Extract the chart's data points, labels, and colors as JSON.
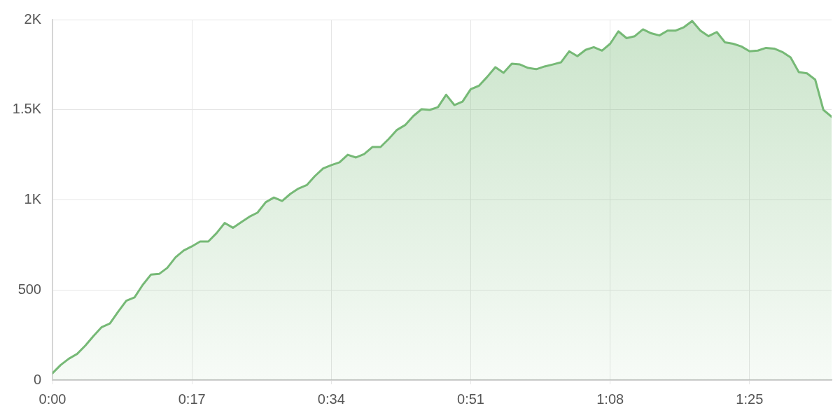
{
  "chart_data": {
    "type": "area",
    "x": [
      0,
      1,
      2,
      3,
      4,
      5,
      6,
      7,
      8,
      9,
      10,
      11,
      12,
      13,
      14,
      15,
      16,
      17,
      18,
      19,
      20,
      21,
      22,
      23,
      24,
      25,
      26,
      27,
      28,
      29,
      30,
      31,
      32,
      33,
      34,
      35,
      36,
      37,
      38,
      39,
      40,
      41,
      42,
      43,
      44,
      45,
      46,
      47,
      48,
      49,
      50,
      51,
      52,
      53,
      54,
      55,
      56,
      57,
      58,
      59,
      60,
      61,
      62,
      63,
      64,
      65,
      66,
      67,
      68,
      69,
      70,
      71,
      72,
      73,
      74,
      75,
      76,
      77,
      78,
      79,
      80,
      81,
      82,
      83,
      84,
      85,
      86,
      87,
      88,
      89,
      90,
      91,
      92,
      93,
      94,
      95
    ],
    "series": [
      {
        "color": "#76b976",
        "values": [
          38,
          84,
          119,
          145,
          191,
          245,
          294,
          314,
          379,
          440,
          459,
          528,
          585,
          589,
          623,
          681,
          719,
          742,
          769,
          769,
          815,
          872,
          845,
          876,
          906,
          929,
          987,
          1013,
          994,
          1033,
          1063,
          1082,
          1132,
          1174,
          1193,
          1208,
          1250,
          1235,
          1254,
          1293,
          1293,
          1338,
          1388,
          1415,
          1465,
          1503,
          1499,
          1514,
          1583,
          1526,
          1545,
          1614,
          1633,
          1682,
          1736,
          1705,
          1755,
          1751,
          1732,
          1725,
          1740,
          1751,
          1763,
          1824,
          1797,
          1832,
          1847,
          1828,
          1866,
          1935,
          1897,
          1908,
          1946,
          1924,
          1912,
          1939,
          1939,
          1958,
          1992,
          1939,
          1908,
          1931,
          1874,
          1866,
          1851,
          1824,
          1828,
          1843,
          1839,
          1820,
          1790,
          1709,
          1702,
          1667,
          1499,
          1461
        ]
      }
    ],
    "xlim": [
      0,
      95
    ],
    "xticks": [
      {
        "value": 0,
        "label": "0:00"
      },
      {
        "value": 17,
        "label": "0:17"
      },
      {
        "value": 34,
        "label": "0:34"
      },
      {
        "value": 51,
        "label": "0:51"
      },
      {
        "value": 68,
        "label": "1:08"
      },
      {
        "value": 85,
        "label": "1:25"
      }
    ],
    "ylim": [
      0,
      2000
    ],
    "yticks": [
      0,
      500,
      {
        "value": 1000,
        "label": "1K"
      },
      {
        "value": 1500,
        "label": "1.5K"
      },
      {
        "value": 2000,
        "label": "2K"
      }
    ],
    "grid": true,
    "marker": "none",
    "line_style": "solid"
  }
}
